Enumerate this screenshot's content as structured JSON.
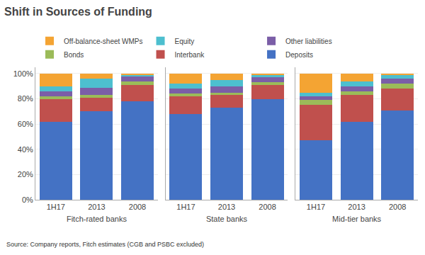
{
  "chart_data": [
    {
      "type": "bar",
      "title": "Shift in Sources of Funding",
      "annotations": [
        "Source: Company reports, Fitch estimates (CGB and PSBC excluded)"
      ],
      "xlabel": "Fitch-rated banks",
      "stacked": true,
      "legend": "top",
      "grid": true,
      "categories": [
        "1H17",
        "2013",
        "2008"
      ],
      "series": [
        {
          "name": "Deposits",
          "color": "#4472C4",
          "values": [
            0.62,
            0.7,
            0.78
          ]
        },
        {
          "name": "Interbank",
          "color": "#C0504D",
          "values": [
            0.18,
            0.11,
            0.13
          ]
        },
        {
          "name": "Bonds",
          "color": "#9BBB59",
          "values": [
            0.02,
            0.02,
            0.03
          ]
        },
        {
          "name": "Other liabilities",
          "color": "#7B5EA7",
          "values": [
            0.04,
            0.06,
            0.04
          ]
        },
        {
          "name": "Equity",
          "color": "#4DBFCF",
          "values": [
            0.04,
            0.07,
            0.01
          ]
        },
        {
          "name": "Off-balance-sheet WMPs",
          "color": "#F4A433",
          "values": [
            0.1,
            0.04,
            0.01
          ]
        }
      ],
      "ylim": [
        0,
        1.05
      ],
      "yticks": [
        {
          "value": 0.0,
          "label": "0%"
        },
        {
          "value": 0.2,
          "label": "20%"
        },
        {
          "value": 0.4,
          "label": "40%"
        },
        {
          "value": 0.6,
          "label": "60%"
        },
        {
          "value": 0.8,
          "label": "80%"
        },
        {
          "value": 1.0,
          "label": "100%"
        }
      ]
    },
    {
      "type": "bar",
      "xlabel": "State banks",
      "stacked": true,
      "grid": true,
      "tick_labels": "x",
      "categories": [
        "1H17",
        "2013",
        "2008"
      ],
      "series": [
        {
          "name": "Deposits",
          "color": "#4472C4",
          "values": [
            0.68,
            0.73,
            0.8
          ]
        },
        {
          "name": "Interbank",
          "color": "#C0504D",
          "values": [
            0.14,
            0.1,
            0.11
          ]
        },
        {
          "name": "Bonds",
          "color": "#9BBB59",
          "values": [
            0.02,
            0.02,
            0.02
          ]
        },
        {
          "name": "Other liabilities",
          "color": "#7B5EA7",
          "values": [
            0.04,
            0.05,
            0.04
          ]
        },
        {
          "name": "Equity",
          "color": "#4DBFCF",
          "values": [
            0.04,
            0.05,
            0.02
          ]
        },
        {
          "name": "Off-balance-sheet WMPs",
          "color": "#F4A433",
          "values": [
            0.08,
            0.05,
            0.01
          ]
        }
      ],
      "ylim": [
        0,
        1.05
      ],
      "yticks": [
        {
          "value": 0.0,
          "label": "0%"
        },
        {
          "value": 0.2,
          "label": "20%"
        },
        {
          "value": 0.4,
          "label": "40%"
        },
        {
          "value": 0.6,
          "label": "60%"
        },
        {
          "value": 0.8,
          "label": "80%"
        },
        {
          "value": 1.0,
          "label": "100%"
        }
      ]
    },
    {
      "type": "bar",
      "xlabel": "Mid-tier banks",
      "stacked": true,
      "grid": true,
      "tick_labels": "x",
      "categories": [
        "1H17",
        "2013",
        "2008"
      ],
      "series": [
        {
          "name": "Deposits",
          "color": "#4472C4",
          "values": [
            0.47,
            0.62,
            0.71
          ]
        },
        {
          "name": "Interbank",
          "color": "#C0504D",
          "values": [
            0.28,
            0.21,
            0.17
          ]
        },
        {
          "name": "Bonds",
          "color": "#9BBB59",
          "values": [
            0.04,
            0.03,
            0.04
          ]
        },
        {
          "name": "Other liabilities",
          "color": "#7B5EA7",
          "values": [
            0.03,
            0.04,
            0.04
          ]
        },
        {
          "name": "Equity",
          "color": "#4DBFCF",
          "values": [
            0.03,
            0.04,
            0.03
          ]
        },
        {
          "name": "Off-balance-sheet WMPs",
          "color": "#F4A433",
          "values": [
            0.15,
            0.06,
            0.01
          ]
        }
      ],
      "ylim": [
        0,
        1.05
      ],
      "yticks": [
        {
          "value": 0.0,
          "label": "0%"
        },
        {
          "value": 0.2,
          "label": "20%"
        },
        {
          "value": 0.4,
          "label": "40%"
        },
        {
          "value": 0.6,
          "label": "60%"
        },
        {
          "value": 0.8,
          "label": "80%"
        },
        {
          "value": 1.0,
          "label": "100%"
        }
      ]
    }
  ]
}
